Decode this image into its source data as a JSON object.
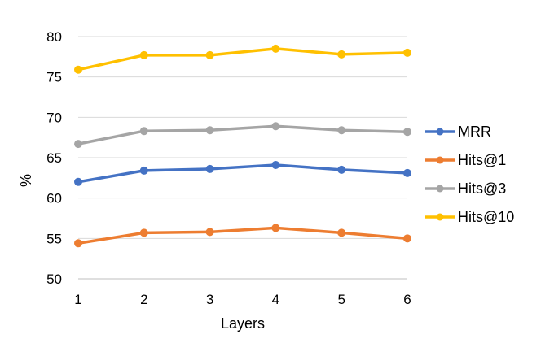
{
  "chart_data": {
    "type": "line",
    "title": "",
    "xlabel": "Layers",
    "ylabel": "%",
    "x": [
      1,
      2,
      3,
      4,
      5,
      6
    ],
    "xticks": [
      "1",
      "2",
      "3",
      "4",
      "5",
      "6"
    ],
    "ylim": [
      50,
      80
    ],
    "yticks": [
      "50",
      "55",
      "60",
      "65",
      "70",
      "75",
      "80"
    ],
    "grid": true,
    "legend": "right",
    "series": [
      {
        "name": "MRR",
        "color": "#4472C4",
        "values": [
          62.0,
          63.4,
          63.6,
          64.1,
          63.5,
          63.1
        ]
      },
      {
        "name": "Hits@1",
        "color": "#ED7D31",
        "values": [
          54.4,
          55.7,
          55.8,
          56.3,
          55.7,
          55.0
        ]
      },
      {
        "name": "Hits@3",
        "color": "#A5A5A5",
        "values": [
          66.7,
          68.3,
          68.4,
          68.9,
          68.4,
          68.2
        ]
      },
      {
        "name": "Hits@10",
        "color": "#FFC000",
        "values": [
          75.9,
          77.7,
          77.7,
          78.5,
          77.8,
          78.0
        ]
      }
    ]
  }
}
